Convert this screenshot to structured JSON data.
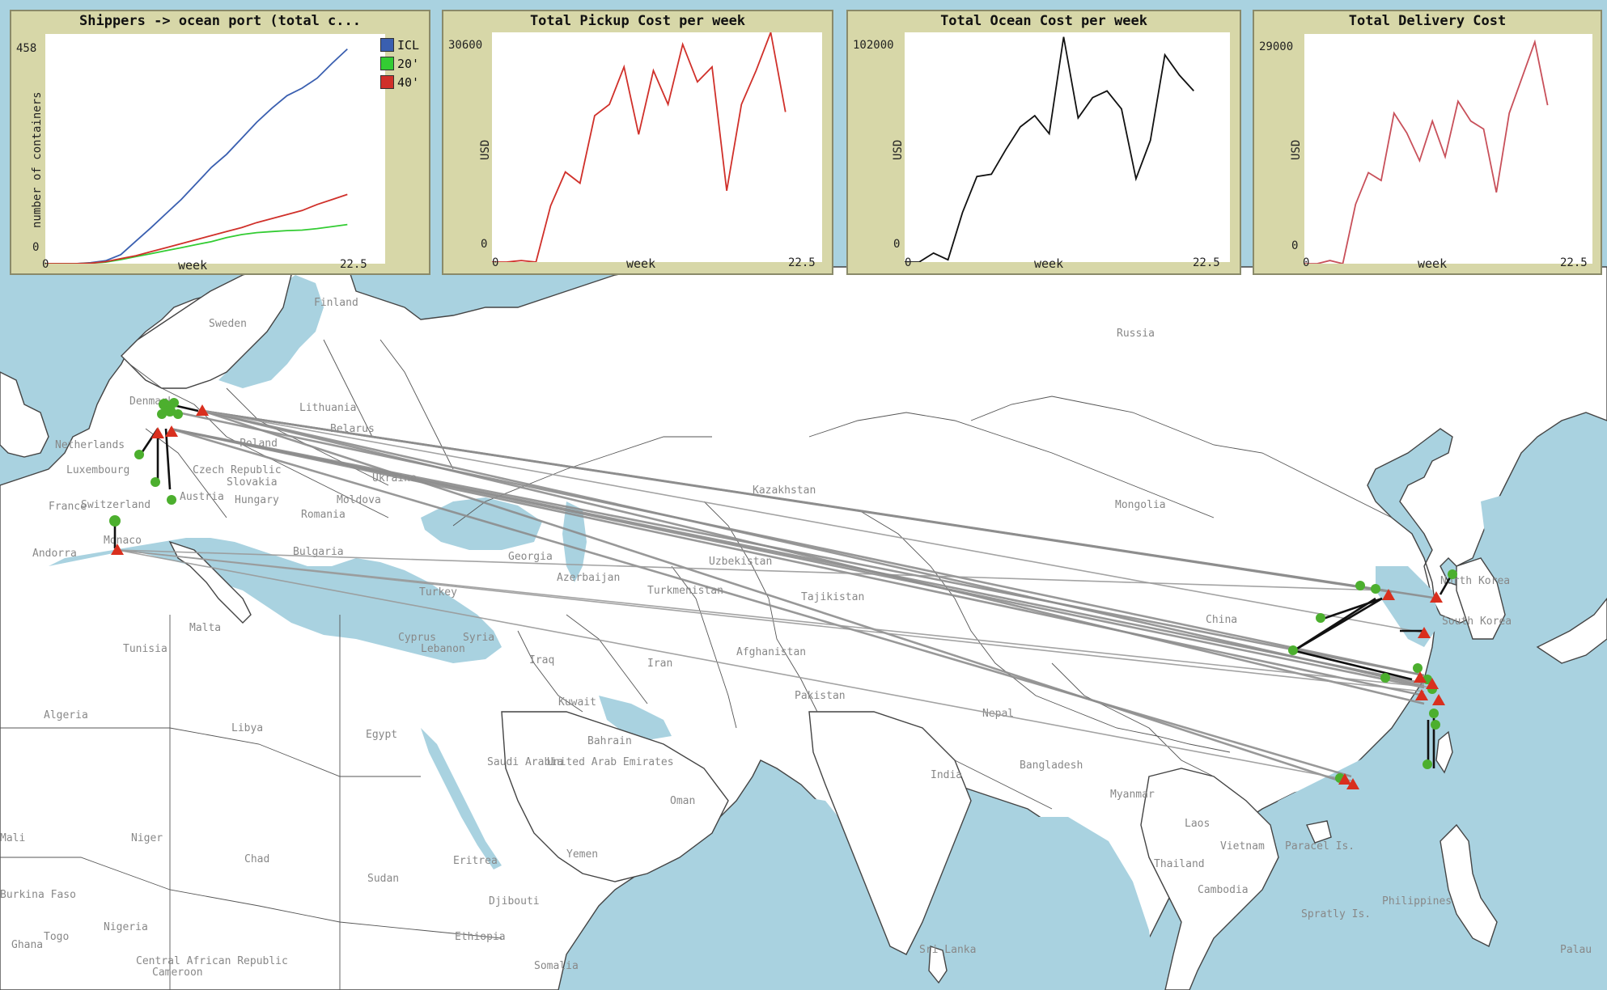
{
  "colors": {
    "icl": "#3a5fb0",
    "c20": "#33cc33",
    "c40": "#d0302a",
    "pickup": "#d0302a",
    "ocean": "#111111",
    "delivery": "#c8505a",
    "panel_bg": "#d7d7a8",
    "sea": "#a9d2e0"
  },
  "map": {
    "labels": [
      "Finland",
      "Sweden",
      "Russia",
      "Denmark",
      "Lithuania",
      "Belarus",
      "Netherlands",
      "Poland",
      "Luxembourg",
      "Czech Republic",
      "Ukraine",
      "Slovakia",
      "Hungary",
      "France",
      "Switzerland",
      "Austria",
      "Moldova",
      "Romania",
      "Kazakhstan",
      "Mongolia",
      "Monaco",
      "Andorra",
      "Bulgaria",
      "Georgia",
      "Uzbekistan",
      "Azerbaijan",
      "North Korea",
      "Turkey",
      "Turkmenistan",
      "Tajikistan",
      "China",
      "South Korea",
      "Malta",
      "Tunisia",
      "Cyprus",
      "Lebanon",
      "Syria",
      "Iraq",
      "Iran",
      "Afghanistan",
      "Algeria",
      "Kuwait",
      "Pakistan",
      "Libya",
      "Egypt",
      "Nepal",
      "Bahrain",
      "Saudi Arabia",
      "United Arab Emirates",
      "India",
      "Bangladesh",
      "Myanmar",
      "Oman",
      "Laos",
      "Vietnam",
      "Paracel Is.",
      "Yemen",
      "Thailand",
      "Niger",
      "Chad",
      "Sudan",
      "Eritrea",
      "Cambodia",
      "Philippines",
      "Spratly Is.",
      "Djibouti",
      "Nigeria",
      "Ethiopia",
      "Central African Republic",
      "Cameroon",
      "Somalia",
      "Sri Lanka",
      "Palau",
      "Ghana",
      "Togo",
      "Burkina Faso",
      "Mali"
    ],
    "agent_type_shipper": "shipper",
    "agent_type_port": "ocean port"
  },
  "plots": [
    {
      "title": "Shippers -> ocean port (total c...",
      "ylabel": "number of containers",
      "xlabel": "week",
      "xmin": "0",
      "xmax": "22.5",
      "ymin": "0",
      "ymax": "458",
      "legend": [
        {
          "label": "ICL",
          "color": "#3a5fb0"
        },
        {
          "label": "20'",
          "color": "#33cc33"
        },
        {
          "label": "40'",
          "color": "#d0302a"
        }
      ]
    },
    {
      "title": "Total Pickup Cost per week",
      "ylabel": "USD",
      "xlabel": "week",
      "xmin": "0",
      "xmax": "22.5",
      "ymin": "0",
      "ymax": "30600"
    },
    {
      "title": "Total Ocean Cost per week",
      "ylabel": "USD",
      "xlabel": "week",
      "xmin": "0",
      "xmax": "22.5",
      "ymin": "0",
      "ymax": "102000"
    },
    {
      "title": "Total Delivery Cost",
      "ylabel": "USD",
      "xlabel": "week",
      "xmin": "0",
      "xmax": "22.5",
      "ymin": "0",
      "ymax": "29000"
    }
  ],
  "chart_data": [
    {
      "type": "line",
      "title": "Shippers -> ocean port (total c...",
      "xlabel": "week",
      "ylabel": "number of containers",
      "xlim": [
        0,
        22.5
      ],
      "ylim": [
        0,
        458
      ],
      "x": [
        0,
        1,
        2,
        3,
        4,
        5,
        6,
        7,
        8,
        9,
        10,
        11,
        12,
        13,
        14,
        15,
        16,
        17,
        18,
        19,
        20
      ],
      "series": [
        {
          "name": "ICL",
          "color": "#3a5fb0",
          "values": [
            0,
            0,
            0,
            2,
            6,
            18,
            45,
            72,
            100,
            128,
            160,
            192,
            218,
            250,
            282,
            310,
            335,
            350,
            370,
            400,
            428
          ]
        },
        {
          "name": "20'",
          "color": "#33cc33",
          "values": [
            0,
            0,
            0,
            1,
            3,
            8,
            14,
            20,
            26,
            32,
            38,
            44,
            52,
            58,
            62,
            64,
            66,
            67,
            70,
            74,
            78
          ]
        },
        {
          "name": "40'",
          "color": "#d0302a",
          "values": [
            0,
            0,
            0,
            1,
            4,
            10,
            16,
            24,
            32,
            40,
            48,
            56,
            64,
            72,
            82,
            90,
            98,
            106,
            118,
            128,
            138
          ]
        }
      ]
    },
    {
      "type": "line",
      "title": "Total Pickup Cost per week",
      "xlabel": "week",
      "ylabel": "USD",
      "xlim": [
        0,
        22.5
      ],
      "ylim": [
        0,
        30600
      ],
      "x": [
        0,
        1,
        2,
        3,
        4,
        5,
        6,
        7,
        8,
        9,
        10,
        11,
        12,
        13,
        14,
        15,
        16,
        17,
        18,
        19,
        20,
        21
      ],
      "series": [
        {
          "name": "",
          "color": "#d0302a",
          "values": [
            0,
            0,
            200,
            0,
            7500,
            12000,
            10500,
            19500,
            21000,
            26000,
            17000,
            25500,
            21000,
            29000,
            24000,
            26000,
            9500,
            21000,
            25500,
            30600,
            20000,
            null
          ]
        }
      ]
    },
    {
      "type": "line",
      "title": "Total Ocean Cost per week",
      "xlabel": "week",
      "ylabel": "USD",
      "xlim": [
        0,
        22.5
      ],
      "ylim": [
        0,
        102000
      ],
      "x": [
        0,
        1,
        2,
        3,
        4,
        5,
        6,
        7,
        8,
        9,
        10,
        11,
        12,
        13,
        14,
        15,
        16,
        17,
        18,
        19,
        20,
        21
      ],
      "series": [
        {
          "name": "",
          "color": "#111111",
          "values": [
            0,
            0,
            4000,
            1000,
            22000,
            38000,
            39000,
            50000,
            60000,
            65000,
            57000,
            100000,
            64000,
            73000,
            76000,
            68000,
            37000,
            54000,
            92000,
            83000,
            76000,
            null
          ]
        }
      ]
    },
    {
      "type": "line",
      "title": "Total Delivery Cost",
      "xlabel": "week",
      "ylabel": "USD",
      "xlim": [
        0,
        22.5
      ],
      "ylim": [
        0,
        29000
      ],
      "x": [
        0,
        1,
        2,
        3,
        4,
        5,
        6,
        7,
        8,
        9,
        10,
        11,
        12,
        13,
        14,
        15,
        16,
        17,
        18,
        19,
        20,
        21
      ],
      "series": [
        {
          "name": "",
          "color": "#c8505a",
          "values": [
            0,
            0,
            400,
            0,
            7500,
            11500,
            10500,
            19000,
            16500,
            13000,
            18000,
            13500,
            20500,
            18000,
            17000,
            9000,
            19000,
            23500,
            28000,
            20000,
            null,
            null
          ]
        }
      ]
    }
  ]
}
